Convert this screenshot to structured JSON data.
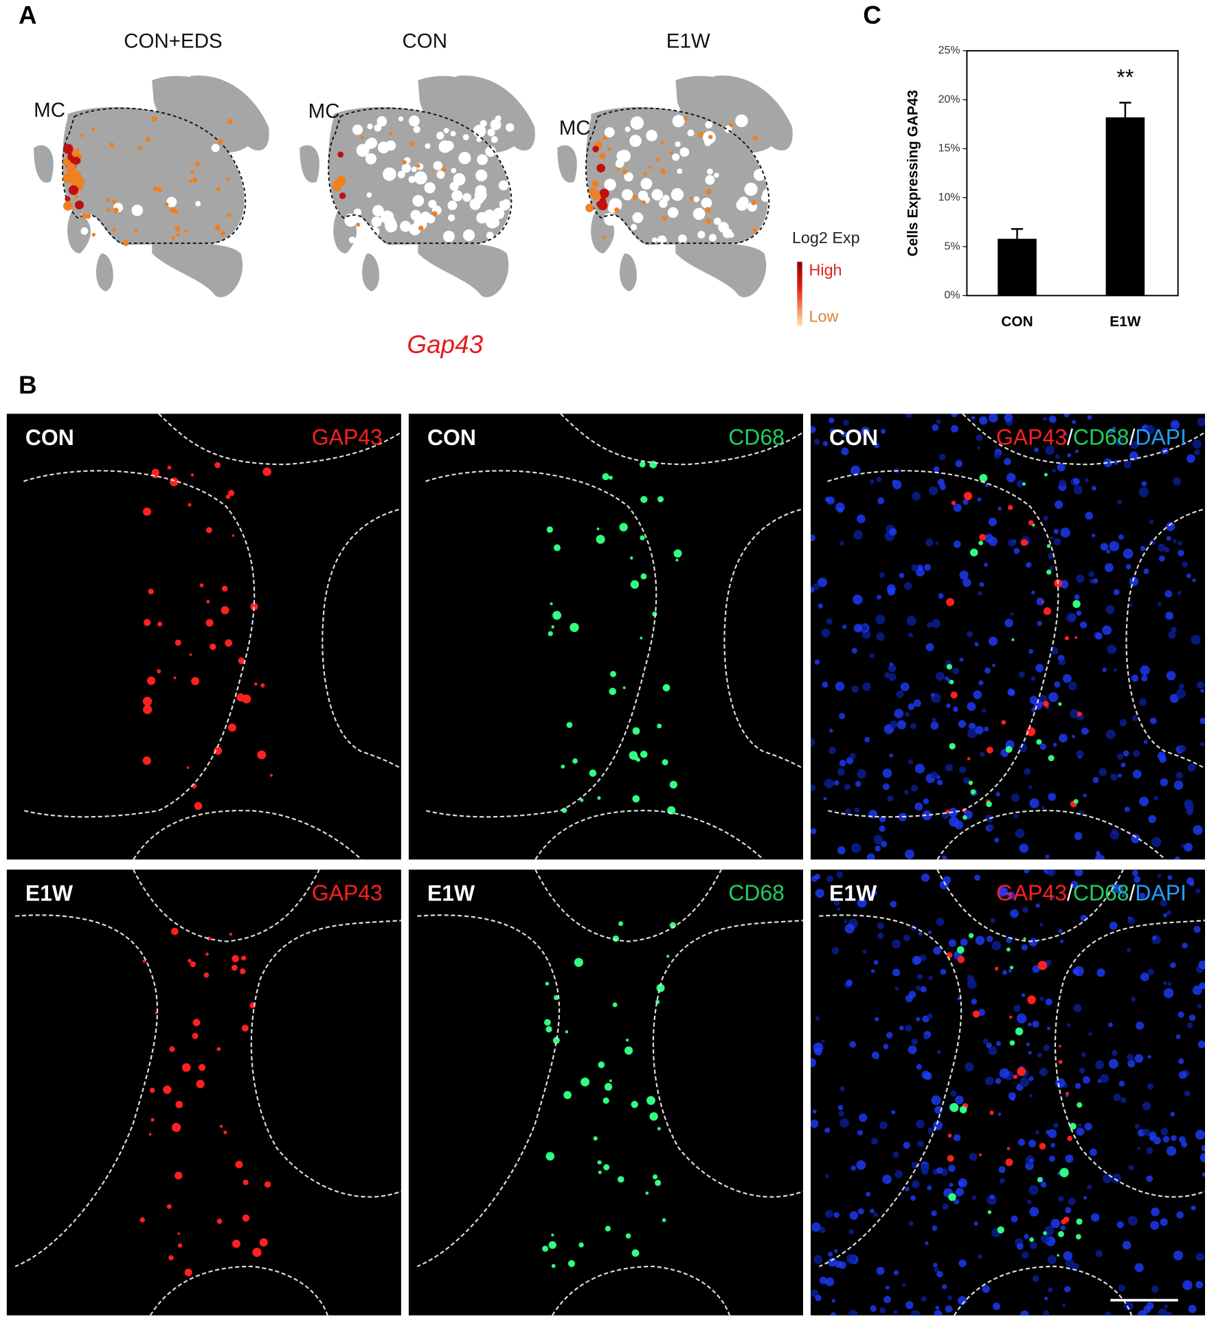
{
  "panel_a": {
    "label": "A",
    "titles": [
      "CON+EDS",
      "CON",
      "E1W"
    ],
    "cluster_label": "MC",
    "legend_title": "Log2 Exp",
    "legend_high": "High",
    "legend_low": "Low",
    "gene": "Gap43"
  },
  "panel_b": {
    "label": "B",
    "conditions": [
      "CON",
      "E1W"
    ],
    "channels": {
      "gap43": "GAP43",
      "cd68": "CD68",
      "dapi": "DAPI",
      "separator": "/"
    }
  },
  "panel_c_label": "C",
  "chart_data": {
    "type": "bar",
    "ylabel": "Cells Expressing GAP43",
    "categories": [
      "CON",
      "E1W"
    ],
    "values": [
      5.8,
      18.2
    ],
    "errors": [
      1.0,
      1.5
    ],
    "color": "#000000",
    "ylim": [
      0,
      25
    ],
    "yticks": [
      {
        "value": 0,
        "label": "0%"
      },
      {
        "value": 5,
        "label": "5%"
      },
      {
        "value": 10,
        "label": "10%"
      },
      {
        "value": 15,
        "label": "15%"
      },
      {
        "value": 20,
        "label": "20%"
      },
      {
        "value": 25,
        "label": "25%"
      }
    ],
    "annotations": [
      {
        "text": "**",
        "category": 1
      }
    ]
  }
}
